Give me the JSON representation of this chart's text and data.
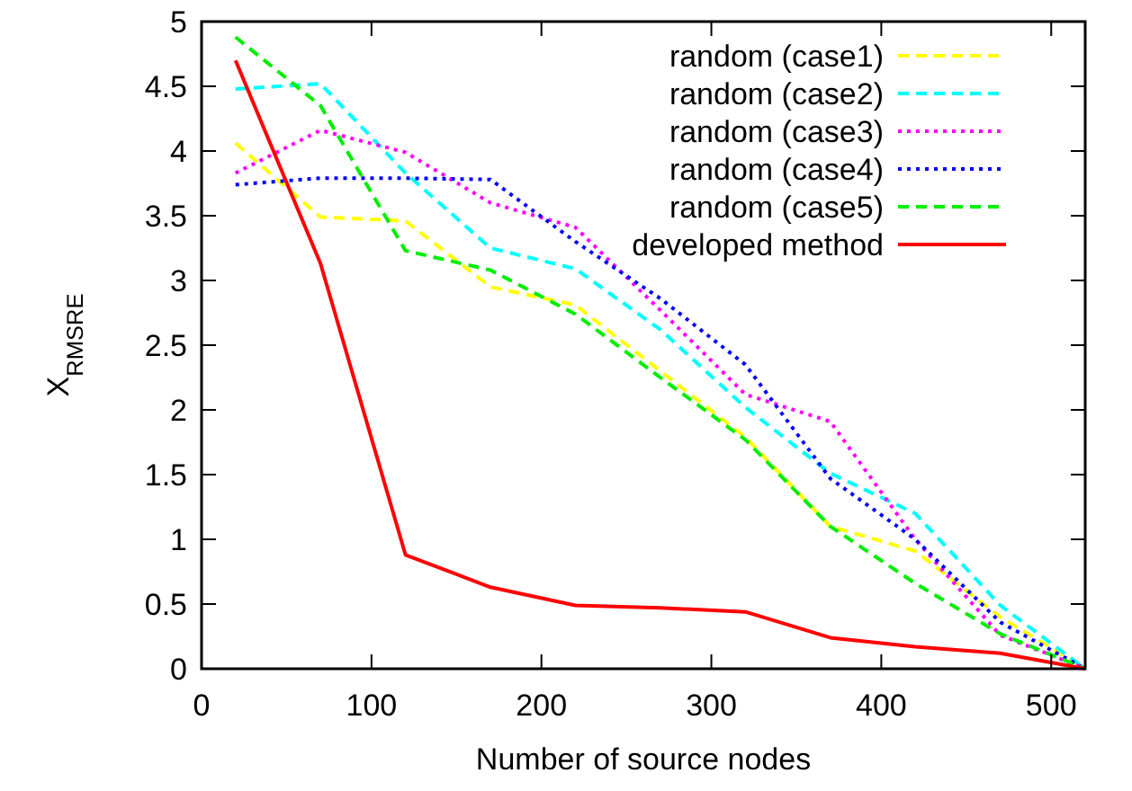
{
  "chart_data": {
    "type": "line",
    "xlabel": "Number of source nodes",
    "ylabel": "X$_{RMSRE}$",
    "x": [
      20,
      70,
      120,
      170,
      220,
      270,
      320,
      370,
      420,
      470,
      520
    ],
    "xlim": [
      0,
      520
    ],
    "ylim": [
      0,
      5
    ],
    "xticks": [
      0,
      100,
      200,
      300,
      400,
      500
    ],
    "yticks": [
      0,
      0.5,
      1,
      1.5,
      2,
      2.5,
      3,
      3.5,
      4,
      4.5,
      5
    ],
    "legend": "top right",
    "series": [
      {
        "name": "random (case1)",
        "color": "#ffff00",
        "line_style": "dashed",
        "values": [
          4.06,
          3.49,
          3.46,
          2.95,
          2.81,
          2.3,
          1.79,
          1.1,
          0.91,
          0.4,
          0
        ]
      },
      {
        "name": "random (case2)",
        "color": "#00ffff",
        "line_style": "dashed",
        "values": [
          4.48,
          4.52,
          3.83,
          3.25,
          3.09,
          2.62,
          2.02,
          1.51,
          1.2,
          0.49,
          0
        ]
      },
      {
        "name": "random (case3)",
        "color": "#ff00ff",
        "line_style": "dotted",
        "values": [
          3.83,
          4.16,
          3.99,
          3.6,
          3.41,
          2.77,
          2.12,
          1.91,
          1.0,
          0.26,
          0
        ]
      },
      {
        "name": "random (case4)",
        "color": "#0000ff",
        "line_style": "dotted",
        "values": [
          3.74,
          3.79,
          3.79,
          3.78,
          3.3,
          2.86,
          2.35,
          1.47,
          1.0,
          0.36,
          0
        ]
      },
      {
        "name": "random (case5)",
        "color": "#00ee00",
        "line_style": "dashed",
        "values": [
          4.88,
          4.35,
          3.23,
          3.08,
          2.74,
          2.25,
          1.77,
          1.1,
          0.66,
          0.27,
          0
        ]
      },
      {
        "name": "developed method",
        "color": "#ff0000",
        "line_style": "solid",
        "values": [
          4.7,
          3.13,
          0.88,
          0.63,
          0.49,
          0.47,
          0.44,
          0.24,
          0.17,
          0.12,
          0
        ]
      }
    ]
  }
}
